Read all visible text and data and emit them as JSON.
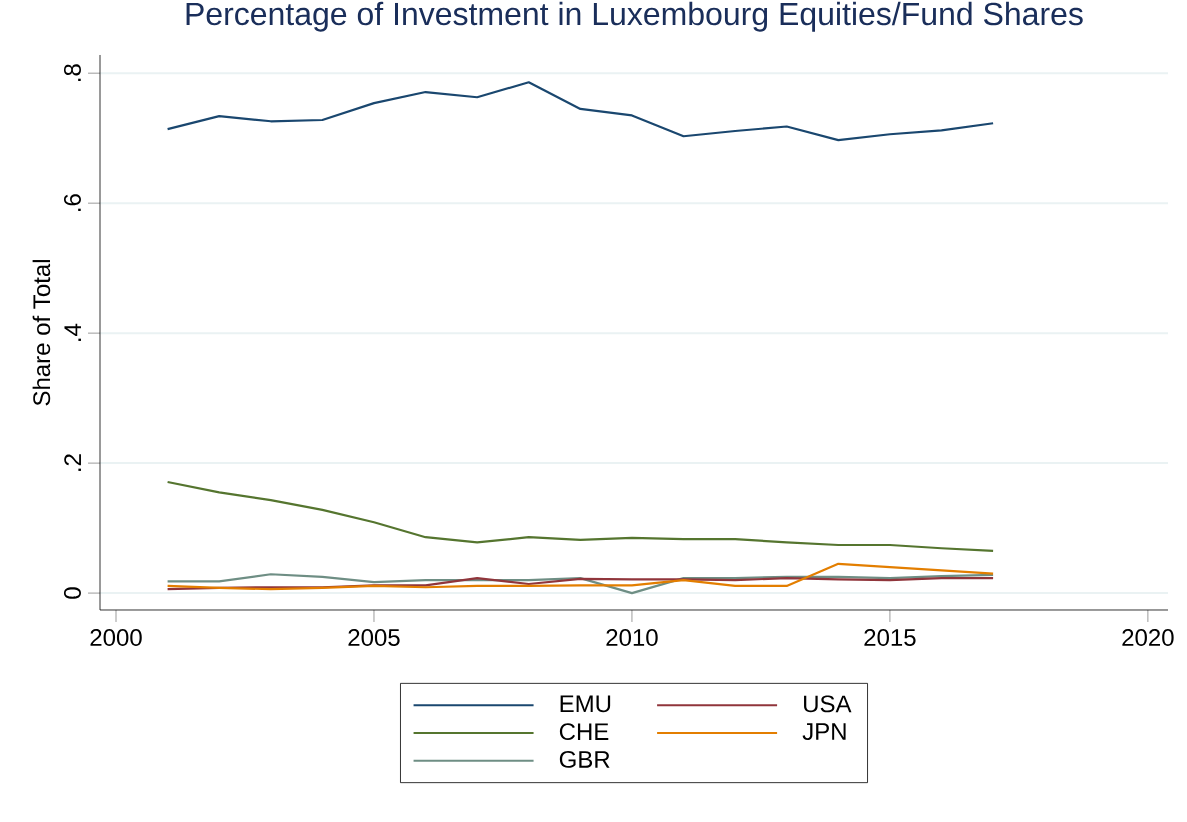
{
  "chart_data": {
    "type": "line",
    "title": "Percentage of Investment in Luxembourg Equities/Fund Shares",
    "ylabel": "Share of Total",
    "x": [
      2001,
      2002,
      2003,
      2004,
      2005,
      2006,
      2007,
      2008,
      2009,
      2010,
      2011,
      2012,
      2013,
      2014,
      2015,
      2016,
      2017
    ],
    "series": [
      {
        "name": "EMU",
        "color": "#1a476f",
        "values": [
          0.714,
          0.734,
          0.726,
          0.728,
          0.754,
          0.771,
          0.763,
          0.786,
          0.745,
          0.735,
          0.703,
          0.711,
          0.718,
          0.697,
          0.706,
          0.712,
          0.723
        ]
      },
      {
        "name": "CHE",
        "color": "#55752f",
        "values": [
          0.171,
          0.155,
          0.143,
          0.128,
          0.109,
          0.086,
          0.078,
          0.086,
          0.082,
          0.085,
          0.083,
          0.083,
          0.078,
          0.074,
          0.074,
          0.069,
          0.065
        ]
      },
      {
        "name": "GBR",
        "color": "#6e8e84",
        "values": [
          0.018,
          0.018,
          0.029,
          0.025,
          0.017,
          0.02,
          0.02,
          0.02,
          0.023,
          0.0,
          0.023,
          0.023,
          0.025,
          0.025,
          0.023,
          0.026,
          0.028
        ]
      },
      {
        "name": "USA",
        "color": "#90353b",
        "values": [
          0.006,
          0.008,
          0.009,
          0.009,
          0.012,
          0.012,
          0.023,
          0.014,
          0.022,
          0.021,
          0.021,
          0.02,
          0.023,
          0.021,
          0.02,
          0.023,
          0.023
        ]
      },
      {
        "name": "JPN",
        "color": "#e37e00",
        "values": [
          0.011,
          0.008,
          0.006,
          0.008,
          0.011,
          0.009,
          0.011,
          0.011,
          0.012,
          0.012,
          0.02,
          0.011,
          0.011,
          0.045,
          0.04,
          0.035,
          0.03
        ]
      }
    ],
    "xlim": [
      1999.69,
      2020.39
    ],
    "ylim": [
      -0.026,
      0.828
    ],
    "xticks": [
      2000,
      2005,
      2010,
      2015,
      2020
    ],
    "yticks": [
      0,
      {
        "value": 0.2,
        "label": ".2"
      },
      {
        "value": 0.4,
        "label": ".4"
      },
      {
        "value": 0.6,
        "label": ".6"
      },
      {
        "value": 0.8,
        "label": ".8"
      }
    ],
    "grid": "y",
    "legend": "bottom",
    "marker": "none",
    "line_style": "solid"
  }
}
